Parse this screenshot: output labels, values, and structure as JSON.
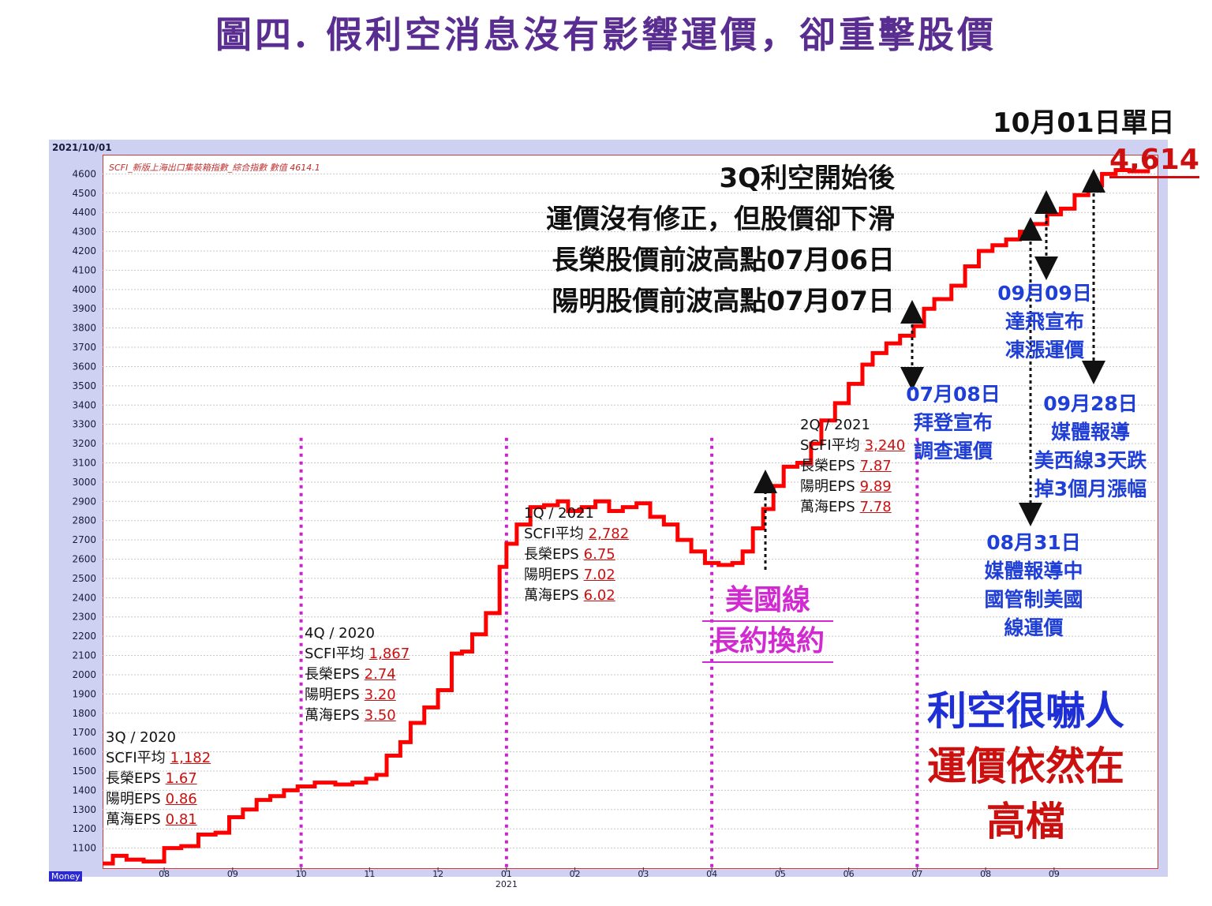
{
  "title": "圖四. 假利空消息沒有影響運價，卻重擊股價",
  "header_date": "2021/10/01",
  "legend_text": "SCFI_新版上海出口集裝箱指數_綜合指數 數值 4614.1",
  "footer_tag": "Money",
  "peak": {
    "label": "10月01日單日",
    "value": "4,614"
  },
  "annotations": {
    "headline": [
      "3Q利空開始後",
      "運價沒有修正，但股價卻下滑",
      "長榮股價前波高點07月06日",
      "陽明股價前波高點07月07日"
    ],
    "jul08": [
      "07月08日",
      "拜登宣布",
      "調查運價"
    ],
    "sep09": [
      "09月09日",
      "達飛宣布",
      "凍漲運價"
    ],
    "sep28": [
      "09月28日",
      "媒體報導",
      "美西線3天跌",
      "掉3個月漲幅"
    ],
    "aug31": [
      "08月31日",
      "媒體報導中",
      "國管制美國",
      "線運價"
    ],
    "us_line": [
      "美國線",
      "長約換約"
    ],
    "conclusion_blue": "利空很嚇人",
    "conclusion_red": [
      "運價依然在",
      "高檔"
    ]
  },
  "quarters": [
    {
      "q": "3Q / 2020",
      "rows": [
        {
          "k": "SCFI平均",
          "v": "1,182"
        },
        {
          "k": "長榮EPS",
          "v": "1.67"
        },
        {
          "k": "陽明EPS",
          "v": "0.86"
        },
        {
          "k": "萬海EPS",
          "v": "0.81"
        }
      ]
    },
    {
      "q": "4Q / 2020",
      "rows": [
        {
          "k": "SCFI平均",
          "v": "1,867"
        },
        {
          "k": "長榮EPS",
          "v": "2.74"
        },
        {
          "k": "陽明EPS",
          "v": "3.20"
        },
        {
          "k": "萬海EPS",
          "v": "3.50"
        }
      ]
    },
    {
      "q": "1Q / 2021",
      "rows": [
        {
          "k": "SCFI平均",
          "v": "2,782"
        },
        {
          "k": "長榮EPS",
          "v": "6.75"
        },
        {
          "k": "陽明EPS",
          "v": "7.02"
        },
        {
          "k": "萬海EPS",
          "v": "6.02"
        }
      ]
    },
    {
      "q": "2Q / 2021",
      "rows": [
        {
          "k": "SCFI平均",
          "v": "3,240"
        },
        {
          "k": "長榮EPS",
          "v": "7.87"
        },
        {
          "k": "陽明EPS",
          "v": "9.89"
        },
        {
          "k": "萬海EPS",
          "v": "7.78"
        }
      ]
    }
  ],
  "colors": {
    "line": "#ff0000",
    "quarter_divider": "#cc22cc",
    "arrow": "#111111"
  },
  "chart_data": {
    "type": "line",
    "title": "SCFI_新版上海出口集裝箱指數_綜合指數",
    "xlabel": "",
    "ylabel": "",
    "ylim": [
      1000,
      4700
    ],
    "yticks": [
      1100,
      1200,
      1300,
      1400,
      1500,
      1600,
      1700,
      1800,
      1900,
      2000,
      2100,
      2200,
      2300,
      2400,
      2500,
      2600,
      2700,
      2800,
      2900,
      3000,
      3100,
      3200,
      3300,
      3400,
      3500,
      3600,
      3700,
      3800,
      3900,
      4000,
      4100,
      4200,
      4300,
      4400,
      4500,
      4600
    ],
    "xticks": [
      {
        "label": "08",
        "x": 8
      },
      {
        "label": "09",
        "x": 9
      },
      {
        "label": "10",
        "x": 10
      },
      {
        "label": "11",
        "x": 11
      },
      {
        "label": "12",
        "x": 12
      },
      {
        "label": "01",
        "x": 13
      },
      {
        "label": "02",
        "x": 14
      },
      {
        "label": "03",
        "x": 15
      },
      {
        "label": "04",
        "x": 16
      },
      {
        "label": "05",
        "x": 17
      },
      {
        "label": "06",
        "x": 18
      },
      {
        "label": "07",
        "x": 19
      },
      {
        "label": "08",
        "x": 20
      },
      {
        "label": "09",
        "x": 21
      }
    ],
    "year_label": {
      "label": "2021",
      "x": 13
    },
    "xlim": [
      7.1,
      22.5
    ],
    "quarter_dividers": [
      10,
      13,
      16,
      19
    ],
    "grid": true,
    "series": [
      {
        "values": [
          [
            7.1,
            1020
          ],
          [
            7.25,
            1060
          ],
          [
            7.45,
            1040
          ],
          [
            7.7,
            1030
          ],
          [
            7.95,
            1030
          ],
          [
            8.0,
            1100
          ],
          [
            8.25,
            1110
          ],
          [
            8.5,
            1170
          ],
          [
            8.75,
            1180
          ],
          [
            8.95,
            1260
          ],
          [
            9.15,
            1300
          ],
          [
            9.35,
            1350
          ],
          [
            9.55,
            1370
          ],
          [
            9.75,
            1400
          ],
          [
            9.95,
            1420
          ],
          [
            10.2,
            1440
          ],
          [
            10.5,
            1430
          ],
          [
            10.75,
            1440
          ],
          [
            10.95,
            1460
          ],
          [
            11.1,
            1480
          ],
          [
            11.25,
            1580
          ],
          [
            11.45,
            1650
          ],
          [
            11.6,
            1750
          ],
          [
            11.8,
            1830
          ],
          [
            12.0,
            1920
          ],
          [
            12.2,
            2110
          ],
          [
            12.35,
            2120
          ],
          [
            12.5,
            2210
          ],
          [
            12.7,
            2320
          ],
          [
            12.9,
            2560
          ],
          [
            13.0,
            2680
          ],
          [
            13.15,
            2780
          ],
          [
            13.35,
            2870
          ],
          [
            13.55,
            2880
          ],
          [
            13.75,
            2900
          ],
          [
            13.9,
            2850
          ],
          [
            14.1,
            2870
          ],
          [
            14.3,
            2900
          ],
          [
            14.5,
            2850
          ],
          [
            14.7,
            2870
          ],
          [
            14.9,
            2890
          ],
          [
            15.1,
            2820
          ],
          [
            15.3,
            2780
          ],
          [
            15.5,
            2700
          ],
          [
            15.7,
            2640
          ],
          [
            15.9,
            2580
          ],
          [
            16.1,
            2570
          ],
          [
            16.3,
            2580
          ],
          [
            16.45,
            2640
          ],
          [
            16.6,
            2760
          ],
          [
            16.75,
            2860
          ],
          [
            16.9,
            2980
          ],
          [
            17.05,
            3080
          ],
          [
            17.25,
            3100
          ],
          [
            17.45,
            3200
          ],
          [
            17.6,
            3320
          ],
          [
            17.8,
            3410
          ],
          [
            18.0,
            3510
          ],
          [
            18.2,
            3610
          ],
          [
            18.35,
            3670
          ],
          [
            18.55,
            3720
          ],
          [
            18.75,
            3760
          ],
          [
            18.95,
            3810
          ],
          [
            19.1,
            3900
          ],
          [
            19.25,
            3950
          ],
          [
            19.5,
            4020
          ],
          [
            19.7,
            4120
          ],
          [
            19.9,
            4200
          ],
          [
            20.1,
            4230
          ],
          [
            20.3,
            4260
          ],
          [
            20.5,
            4300
          ],
          [
            20.7,
            4340
          ],
          [
            20.9,
            4390
          ],
          [
            21.1,
            4420
          ],
          [
            21.3,
            4490
          ],
          [
            21.5,
            4540
          ],
          [
            21.7,
            4600
          ],
          [
            21.9,
            4620
          ],
          [
            22.1,
            4614
          ]
        ]
      }
    ]
  }
}
